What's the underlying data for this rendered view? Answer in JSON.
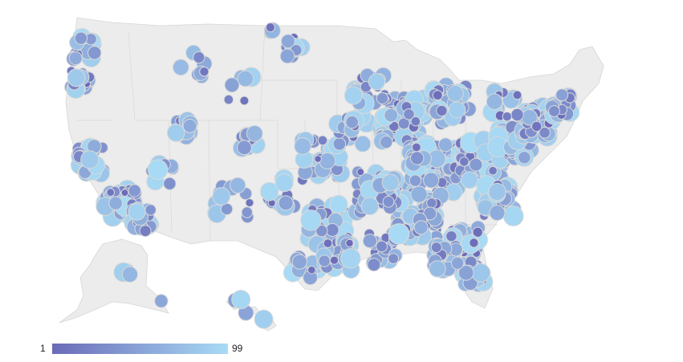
{
  "legend": {
    "min_label": "1",
    "max_label": "99",
    "color_min": "#6a6ab8",
    "color_max": "#a8dbf5"
  },
  "map": {
    "type": "bubble-geo-map",
    "region": "United States",
    "land_color": "#ececec",
    "border_color": "#d6d6d6",
    "marker_stroke": "#d9d9d9"
  }
}
